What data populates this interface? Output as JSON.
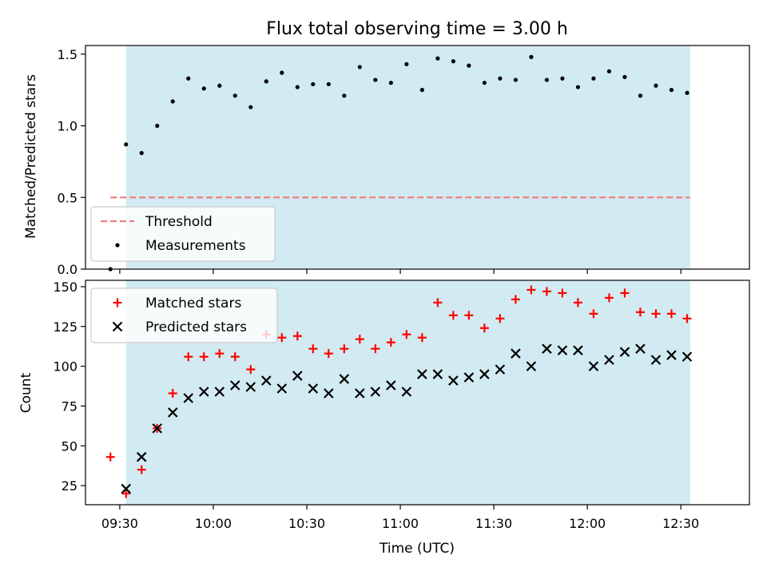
{
  "chart_data": {
    "title": "Flux total observing time = 3.00 h",
    "xlabel": "Time (UTC)",
    "x_unit": "minutes after 09:00 UTC",
    "xlim": [
      19,
      232
    ],
    "x_ticks": [
      {
        "value": 30,
        "label": "09:30"
      },
      {
        "value": 60,
        "label": "10:00"
      },
      {
        "value": 90,
        "label": "10:30"
      },
      {
        "value": 120,
        "label": "11:00"
      },
      {
        "value": 150,
        "label": "11:30"
      },
      {
        "value": 180,
        "label": "12:00"
      },
      {
        "value": 210,
        "label": "12:30"
      }
    ],
    "shaded_span": {
      "x0": 32,
      "x1": 213,
      "color": "#add8e6"
    },
    "time_x": [
      27,
      32,
      37,
      42,
      47,
      52,
      57,
      62,
      67,
      72,
      77,
      82,
      87,
      92,
      97,
      102,
      107,
      112,
      117,
      122,
      127,
      132,
      137,
      142,
      147,
      152,
      157,
      162,
      167,
      172,
      177,
      182,
      187,
      192,
      197,
      202,
      207,
      212
    ],
    "panels": [
      {
        "type": "scatter",
        "ylabel": "Matched/Predicted stars",
        "ylim": [
          0,
          1.56
        ],
        "y_ticks": [
          {
            "value": 0,
            "label": "0.0"
          },
          {
            "value": 0.5,
            "label": "0.5"
          },
          {
            "value": 1.0,
            "label": "1.0"
          },
          {
            "value": 1.5,
            "label": "1.5"
          }
        ],
        "threshold": {
          "name": "Threshold",
          "value": 0.5,
          "x0": 27,
          "x1": 213,
          "color": "#f08080"
        },
        "series": [
          {
            "name": "Measurements",
            "marker": "dot",
            "color": "#000000",
            "values": [
              0.0,
              0.87,
              0.81,
              1.0,
              1.17,
              1.33,
              1.26,
              1.28,
              1.21,
              1.13,
              1.31,
              1.37,
              1.27,
              1.29,
              1.29,
              1.21,
              1.41,
              1.32,
              1.3,
              1.43,
              1.25,
              1.47,
              1.45,
              1.42,
              1.3,
              1.33,
              1.32,
              1.48,
              1.32,
              1.33,
              1.27,
              1.33,
              1.38,
              1.34,
              1.21,
              1.28,
              1.25,
              1.23
            ]
          }
        ],
        "legend": {
          "placement": "lower-left",
          "entries": [
            "Threshold",
            "Measurements"
          ]
        }
      },
      {
        "type": "scatter",
        "ylabel": "Count",
        "ylim": [
          13,
          154
        ],
        "y_ticks": [
          {
            "value": 25,
            "label": "25"
          },
          {
            "value": 50,
            "label": "50"
          },
          {
            "value": 75,
            "label": "75"
          },
          {
            "value": 100,
            "label": "100"
          },
          {
            "value": 125,
            "label": "125"
          },
          {
            "value": 150,
            "label": "150"
          }
        ],
        "series": [
          {
            "name": "Matched stars",
            "marker": "plus",
            "color": "#ff0000",
            "values": [
              43,
              20,
              35,
              61,
              83,
              106,
              106,
              108,
              106,
              98,
              120,
              118,
              119,
              111,
              108,
              111,
              117,
              111,
              115,
              120,
              118,
              140,
              132,
              132,
              124,
              130,
              142,
              148,
              147,
              146,
              140,
              133,
              143,
              146,
              134,
              133,
              133,
              130
            ]
          },
          {
            "name": "Predicted stars",
            "marker": "x",
            "color": "#000000",
            "values": [
              null,
              23,
              43,
              61,
              71,
              80,
              84,
              84,
              88,
              87,
              91,
              86,
              94,
              86,
              83,
              92,
              83,
              84,
              88,
              84,
              95,
              95,
              91,
              93,
              95,
              98,
              108,
              100,
              111,
              110,
              110,
              100,
              104,
              109,
              111,
              104,
              107,
              106
            ]
          }
        ],
        "legend": {
          "placement": "top-left",
          "entries": [
            "Matched stars",
            "Predicted stars"
          ]
        }
      }
    ]
  }
}
